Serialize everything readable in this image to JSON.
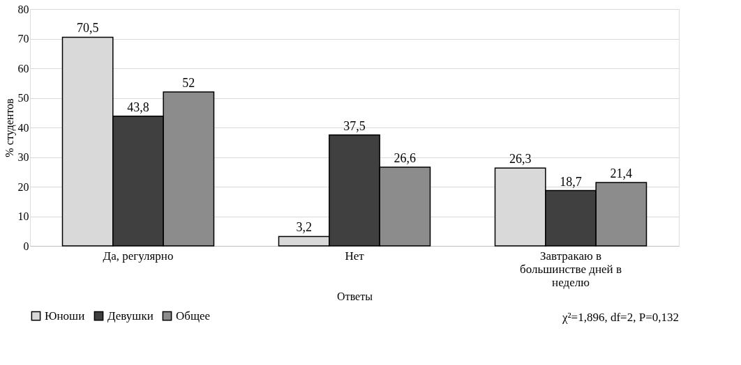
{
  "chart_data": {
    "type": "bar",
    "xlabel": "Ответы",
    "ylabel": "% студентов",
    "categories": [
      "Да, регулярно",
      "Нет",
      "Завтракаю в большинстве дней в неделю"
    ],
    "series": [
      {
        "name": "Юноши",
        "color": "#d9d9d9",
        "values": [
          70.5,
          3.2,
          26.3
        ],
        "value_labels": [
          "70,5",
          "3,2",
          "26,3"
        ]
      },
      {
        "name": "Девушки",
        "color": "#404040",
        "values": [
          43.8,
          37.5,
          18.7
        ],
        "value_labels": [
          "43,8",
          "37,5",
          "18,7"
        ]
      },
      {
        "name": "Общее",
        "color": "#8c8c8c",
        "values": [
          52,
          26.6,
          21.4
        ],
        "value_labels": [
          "52",
          "26,6",
          "21,4"
        ]
      }
    ],
    "ylim": [
      0,
      80
    ],
    "yticks": [
      0,
      10,
      20,
      30,
      40,
      50,
      60,
      70,
      80
    ],
    "grid": "y",
    "legend": "bottom left",
    "annotations": [
      "χ²=1,896, df=2, P=0,132"
    ]
  }
}
